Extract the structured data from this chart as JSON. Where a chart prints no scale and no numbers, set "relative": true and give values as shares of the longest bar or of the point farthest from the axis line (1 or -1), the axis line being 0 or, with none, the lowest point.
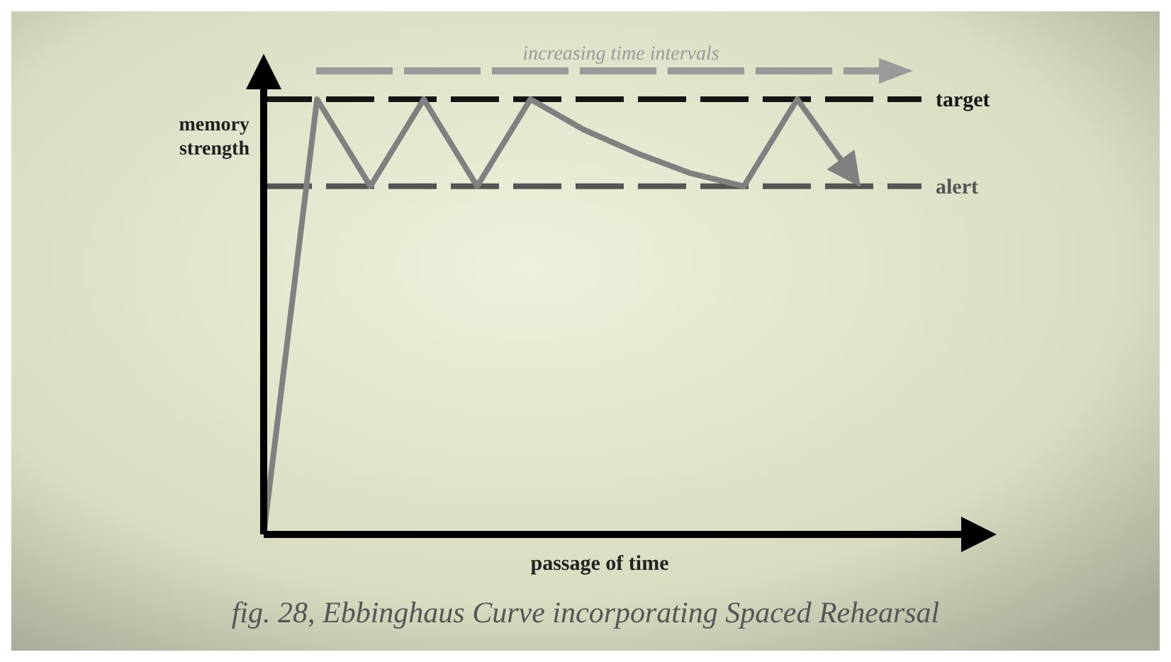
{
  "chart_data": {
    "type": "line",
    "relative": true,
    "title": "fig. 28, Ebbinghaus Curve incorporating Spaced Rehearsal",
    "xlabel": "passage of time",
    "ylabel": "memory strength",
    "line_style": "solid",
    "categories": [
      null,
      null,
      null,
      null,
      null,
      null,
      null,
      null,
      null,
      null,
      null,
      null
    ],
    "series": [
      {
        "color": "#808080",
        "values": [
          0,
          1,
          0.8,
          1,
          0.8,
          1,
          0.93,
          0.876,
          0.83,
          0.8,
          1,
          0.83
        ]
      }
    ],
    "ref_lines": [
      {
        "axis": "y",
        "value": 1,
        "label": "target",
        "color": "#151515",
        "line_style": "dashed"
      },
      {
        "axis": "y",
        "value": 0.8,
        "label": "alert",
        "color": "#555555",
        "line_style": "dashed"
      }
    ],
    "annotations": [
      "increasing time intervals"
    ]
  }
}
